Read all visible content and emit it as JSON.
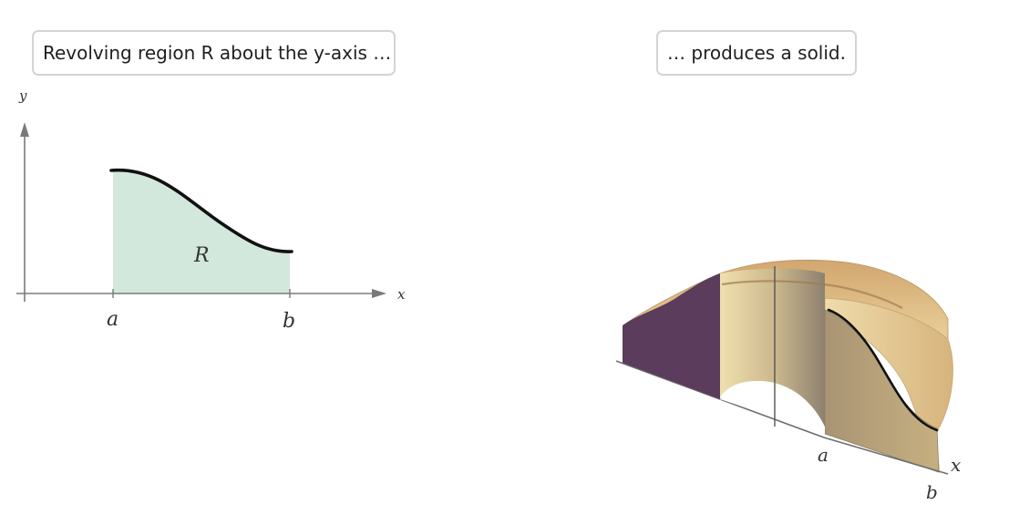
{
  "left_panel": {
    "caption": "Revolving region R about the y-axis …",
    "axis_x_label": "x",
    "axis_y_label": "y",
    "region_label": "R",
    "tick_a_label": "a",
    "tick_b_label": "b",
    "region_fill_color": "#d3e8dd"
  },
  "right_panel": {
    "caption": "… produces a solid.",
    "axis_x_label": "x",
    "tick_a_label": "a",
    "tick_b_label": "b",
    "solid_color": "#e7d3a2",
    "cut_face_color": "#5b3c5c"
  }
}
